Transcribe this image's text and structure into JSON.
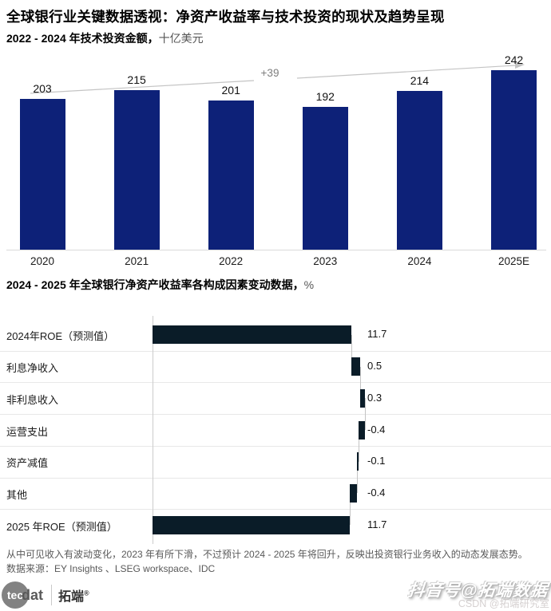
{
  "header": {
    "title": "全球银行业关键数据透视：净资产收益率与技术投资的现状及趋势呈现"
  },
  "chart_data": [
    {
      "type": "bar",
      "orientation": "vertical",
      "title": "2022 - 2024 年技术投资金额，",
      "unit": "十亿美元",
      "categories": [
        "2020",
        "2021",
        "2022",
        "2023",
        "2024",
        "2025E"
      ],
      "values": [
        203,
        215,
        201,
        192,
        214,
        242
      ],
      "value_labels": [
        "203",
        "215",
        "201",
        "192",
        "214",
        "242"
      ],
      "annotation": "+39",
      "trend_arrow": true,
      "bar_color": "#0d2178",
      "ylim": [
        0,
        260
      ],
      "grid": false
    },
    {
      "type": "bar",
      "orientation": "horizontal",
      "subtype": "waterfall",
      "title": "2024 - 2025 年全球银行净资产收益率各构成因素变动数据，",
      "unit": "%",
      "categories": [
        "2024年ROE（预测值）",
        "利息净收入",
        "非利息收入",
        "运营支出",
        "资产减值",
        "其他",
        "2025 年ROE（预测值）"
      ],
      "values": [
        11.7,
        0.5,
        0.3,
        -0.4,
        -0.1,
        -0.4,
        11.7
      ],
      "kinds": [
        "total",
        "delta",
        "delta",
        "delta",
        "delta",
        "delta",
        "total"
      ],
      "value_labels": [
        "11.7",
        "0.5",
        "0.3",
        "-0.4",
        "-0.1",
        "-0.4",
        "11.7"
      ],
      "bar_color": "#0a1c28",
      "xlim": [
        0,
        13
      ],
      "grid": false
    }
  ],
  "footer": {
    "note": "从中可见收入有波动变化，2023 年有所下滑，不过预计 2024 - 2025 年将回升，反映出投资银行业务收入的动态发展态势。",
    "source": "数据来源：EY Insights 、LSEG workspace、IDC"
  },
  "branding": {
    "logo_circle": "tec",
    "logo_rest": "dat",
    "logo_cn": "拓端",
    "logo_reg": "®",
    "watermark": "抖音号@拓端数据",
    "watermark_sub": "CSDN @拓端研究室"
  },
  "colors": {
    "bar_navy": "#0d2178",
    "bar_dark": "#0a1c28",
    "baseline_gray": "#d9d9d9",
    "separator_gray": "#e8e8e8",
    "trend_gray": "#c4c4c4",
    "annotation_gray": "#7f7f7f",
    "footer_gray": "#595959"
  }
}
